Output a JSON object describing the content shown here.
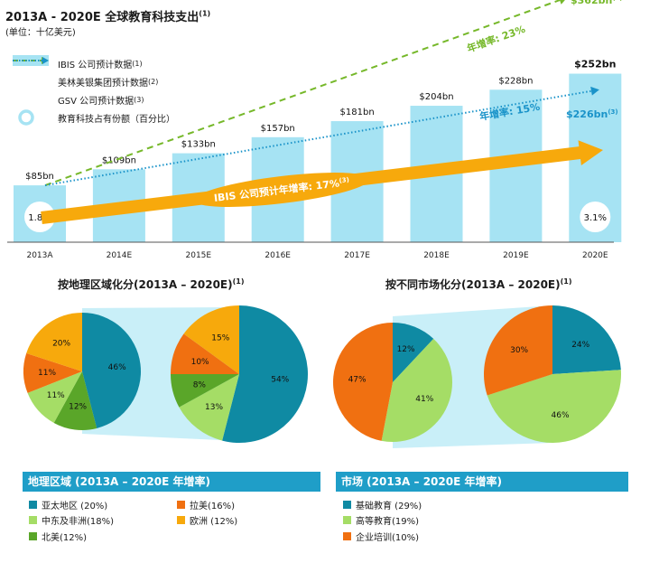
{
  "title": "2013A - 2020E 全球教育科技支出",
  "title_note": "(1)",
  "unit": "(单位：十亿美元)",
  "legend": [
    {
      "label": "IBIS 公司预计数据",
      "note": "(1)",
      "color": "#a6e3f3"
    },
    {
      "label": "美林美银集团预计数据",
      "note": "(2)",
      "color": "#76b82a"
    },
    {
      "label": "GSV 公司预计数据",
      "note": "(3)",
      "color": "#1a93c9"
    },
    {
      "label": "教育科技占有份额（百分比）",
      "note": "",
      "color": "#a6e3f3"
    }
  ],
  "chart_data": [
    {
      "type": "bar",
      "title": "2013A - 2020E 全球教育科技支出",
      "ylabel": "",
      "categories": [
        "2013A",
        "2014E",
        "2015E",
        "2016E",
        "2017E",
        "2018E",
        "2019E",
        "2020E"
      ],
      "values": [
        85,
        109,
        133,
        157,
        181,
        204,
        228,
        252
      ],
      "value_labels": [
        "$85bn",
        "$109bn",
        "$133bn",
        "$157bn",
        "$181bn",
        "$204bn",
        "$228bn",
        "$252bn"
      ],
      "share_labels": {
        "first": "1.8%",
        "last": "3.1%"
      },
      "trends": {
        "ml": {
          "start": 85,
          "end": 362,
          "end_label": "$362bn",
          "end_note": "(2)",
          "rate_label": "年增率: 23%"
        },
        "gsv": {
          "start": 85,
          "end": 226,
          "end_label": "$226bn",
          "end_note": "(3)",
          "rate_label": "年增率: 15%"
        },
        "ibis": {
          "rate_label": "IBIS 公司预计年增率: 17%",
          "rate_note": "(3)"
        }
      }
    },
    {
      "type": "pie",
      "title": "按地理区域化分(2013A – 2020E)",
      "title_note": "(1)",
      "pies": [
        {
          "slices": [
            {
              "name": "亚太地区",
              "value": 46
            },
            {
              "name": "北美",
              "value": 12
            },
            {
              "name": "中东及非洲",
              "value": 11
            },
            {
              "name": "拉美",
              "value": 11
            },
            {
              "name": "欧洲",
              "value": 20
            }
          ],
          "labels": [
            "46%",
            "12%",
            "11%",
            "11%",
            "20%"
          ]
        },
        {
          "slices": [
            {
              "name": "亚太地区",
              "value": 54
            },
            {
              "name": "中东及非洲",
              "value": 13
            },
            {
              "name": "北美",
              "value": 8
            },
            {
              "name": "拉美",
              "value": 10
            },
            {
              "name": "欧洲",
              "value": 15
            }
          ],
          "labels": [
            "54%",
            "13%",
            "8%",
            "10%",
            "15%"
          ]
        }
      ],
      "legend_title": "地理区域 (2013A – 2020E 年增率)",
      "legend": [
        {
          "label": "亚太地区 (20%)",
          "color": "#0f8aa3"
        },
        {
          "label": "拉美(16%)",
          "color": "#f07011"
        },
        {
          "label": "中东及非洲(18%)",
          "color": "#a5dd66"
        },
        {
          "label": "欧洲 (12%)",
          "color": "#f7a90c"
        },
        {
          "label": "北美(12%)",
          "color": "#5aa629"
        }
      ]
    },
    {
      "type": "pie",
      "title": "按不同市场化分(2013A – 2020E)",
      "title_note": "(1)",
      "pies": [
        {
          "slices": [
            {
              "name": "基础教育",
              "value": 12
            },
            {
              "name": "高等教育",
              "value": 41
            },
            {
              "name": "企业培训",
              "value": 47
            }
          ],
          "labels": [
            "12%",
            "41%",
            "47%"
          ]
        },
        {
          "slices": [
            {
              "name": "基础教育",
              "value": 24
            },
            {
              "name": "高等教育",
              "value": 46
            },
            {
              "name": "企业培训",
              "value": 30
            }
          ],
          "labels": [
            "24%",
            "46%",
            "30%"
          ]
        }
      ],
      "legend_title": "市场 (2013A – 2020E 年增率)",
      "legend": [
        {
          "label": "基础教育 (29%)",
          "color": "#0f8aa3"
        },
        {
          "label": "高等教育(19%)",
          "color": "#a5dd66"
        },
        {
          "label": "企业培训(10%)",
          "color": "#f07011"
        }
      ]
    }
  ],
  "colors": {
    "bar": "#a6e3f3",
    "ml": "#76b82a",
    "gsv": "#1a93c9",
    "ibis_arrow": "#f7a90c",
    "funnel": "#c9eff8",
    "header": "#1f9ec8"
  }
}
